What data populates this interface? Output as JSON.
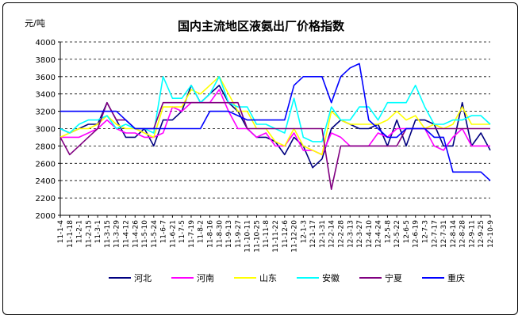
{
  "chart_data": {
    "type": "line",
    "title": "国内主流地区液氨出厂价格指数",
    "ylabel": "元/吨",
    "xlabel": "",
    "ylim": [
      2000,
      4000
    ],
    "yticks": [
      2000,
      2200,
      2400,
      2600,
      2800,
      3000,
      3200,
      3400,
      3600,
      3800,
      4000
    ],
    "grid": "horizontal-dashed",
    "legend_position": "bottom",
    "categories": [
      "11-1-4",
      "11-1-18",
      "11-2-1",
      "11-2-15",
      "11-3-1",
      "11-3-15",
      "11-3-29",
      "11-4-12",
      "11-4-26",
      "11-5-10",
      "11-5-24",
      "11-6-7",
      "11-6-21",
      "11-7-5",
      "11-7-19",
      "11-8-2",
      "11-8-16",
      "11-8-30",
      "11-9-13",
      "11-9-27",
      "11-10-11",
      "11-10-25",
      "11-11-8",
      "11-11-22",
      "11-12-6",
      "11-12-20",
      "12-1-3",
      "12-1-17",
      "12-1-31",
      "12-2-14",
      "12-2-28",
      "12-3-13",
      "12-3-27",
      "12-4-10",
      "12-4-24",
      "12-5-8",
      "12-5-22",
      "12-6-5",
      "12-6-19",
      "12-7-3",
      "12-7-17",
      "12-7-31",
      "12-8-14",
      "12-8-28",
      "12-9-11",
      "12-9-25",
      "12-10-9"
    ],
    "series": [
      {
        "name": "河北",
        "color": "#000080",
        "values": [
          3000,
          2950,
          3000,
          3050,
          3050,
          3300,
          3100,
          2900,
          2900,
          3000,
          2800,
          3100,
          3100,
          3200,
          3500,
          3300,
          3400,
          3500,
          3300,
          3200,
          3000,
          2900,
          2900,
          2850,
          2700,
          2900,
          2800,
          2550,
          2650,
          3000,
          3100,
          3050,
          3000,
          3000,
          3050,
          2800,
          3100,
          2800,
          3100,
          3100,
          3050,
          2800,
          2800,
          3300,
          2800,
          2950,
          2750
        ]
      },
      {
        "name": "河南",
        "color": "#ff00ff",
        "values": [
          2900,
          2900,
          2900,
          2950,
          3000,
          3100,
          3000,
          2950,
          2950,
          2900,
          2900,
          2950,
          3250,
          3200,
          3300,
          3300,
          3300,
          3450,
          3200,
          3000,
          3000,
          2900,
          2950,
          2800,
          2800,
          2950,
          2750,
          2750,
          2700,
          2950,
          2900,
          2800,
          2800,
          2800,
          2950,
          2900,
          3000,
          3000,
          3000,
          3000,
          2800,
          2750,
          2900,
          3000,
          2800,
          2800,
          2800
        ]
      },
      {
        "name": "山东",
        "color": "#ffff00",
        "values": [
          2900,
          2950,
          3000,
          3000,
          3050,
          3150,
          3050,
          3000,
          3000,
          2950,
          2900,
          3250,
          3250,
          3250,
          3450,
          3400,
          3500,
          3600,
          3400,
          3200,
          3200,
          3000,
          3000,
          2850,
          2800,
          3000,
          2800,
          2750,
          2700,
          3200,
          3100,
          3050,
          3050,
          3050,
          3050,
          3100,
          3200,
          3100,
          3150,
          3000,
          3050,
          3000,
          3050,
          3250,
          3050,
          3050,
          3050
        ]
      },
      {
        "name": "安徽",
        "color": "#00ffff",
        "values": [
          3000,
          2950,
          3050,
          3100,
          3100,
          3150,
          3000,
          3050,
          3000,
          3000,
          2950,
          3600,
          3350,
          3350,
          3500,
          3300,
          3400,
          3600,
          3300,
          3250,
          3250,
          3050,
          3050,
          3000,
          2950,
          3350,
          2900,
          2850,
          2850,
          3250,
          3100,
          3100,
          3250,
          3250,
          3100,
          3300,
          3300,
          3300,
          3500,
          3250,
          3050,
          3050,
          3100,
          3100,
          3150,
          3150,
          3050
        ]
      },
      {
        "name": "宁夏",
        "color": "#800080",
        "values": [
          2900,
          2700,
          2800,
          2900,
          3000,
          3300,
          3100,
          3100,
          3000,
          3000,
          3000,
          3300,
          3300,
          3300,
          3300,
          3300,
          3300,
          3300,
          3300,
          3300,
          3000,
          3000,
          3000,
          3000,
          3000,
          3000,
          3000,
          3000,
          3000,
          2300,
          2800,
          2800,
          2800,
          2800,
          2800,
          2800,
          2800,
          3000,
          3000,
          3000,
          3000,
          3000,
          3000,
          3000,
          3000,
          3000,
          3000
        ]
      },
      {
        "name": "重庆",
        "color": "#0000ff",
        "values": [
          3200,
          3200,
          3200,
          3200,
          3200,
          3200,
          3200,
          3100,
          3000,
          3000,
          3000,
          3000,
          3000,
          3000,
          3000,
          3000,
          3200,
          3200,
          3200,
          3150,
          3100,
          3100,
          3100,
          3100,
          3100,
          3500,
          3600,
          3600,
          3600,
          3300,
          3600,
          3700,
          3750,
          3100,
          3000,
          2900,
          2900,
          3000,
          3000,
          3000,
          2900,
          2900,
          2500,
          2500,
          2500,
          2500,
          2400
        ]
      }
    ]
  }
}
